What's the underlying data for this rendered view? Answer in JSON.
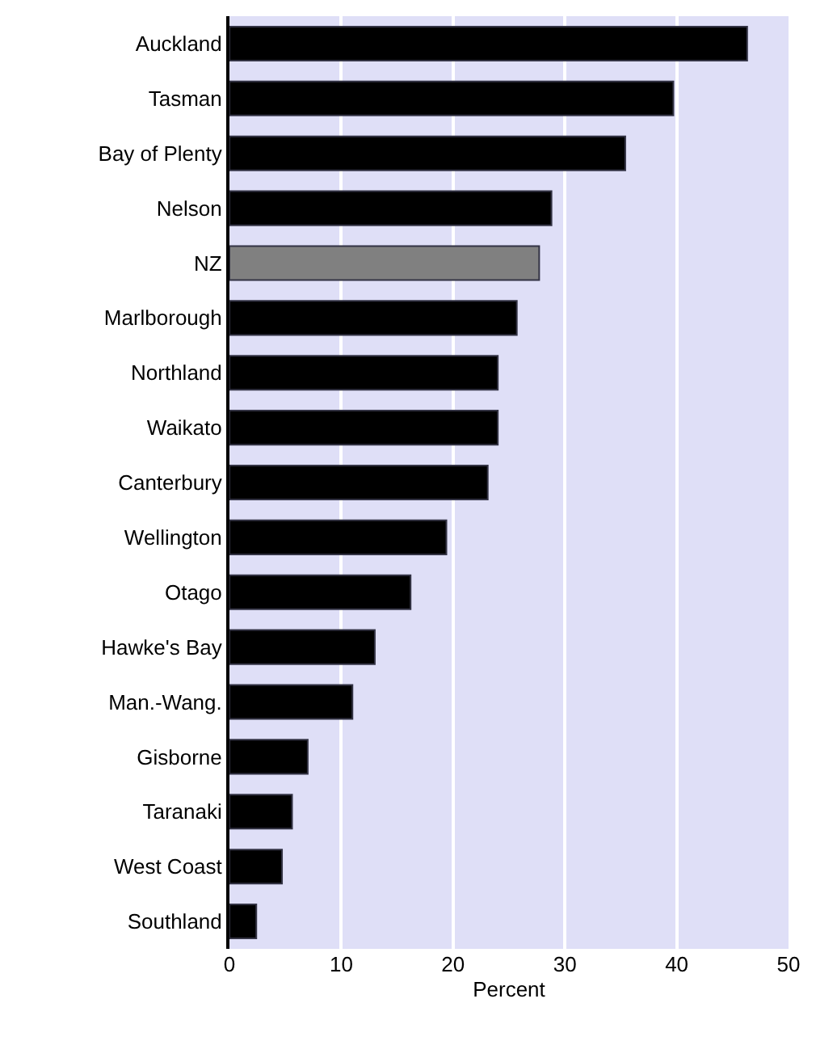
{
  "chart_data": {
    "type": "bar",
    "orientation": "horizontal",
    "xlabel": "Percent",
    "categories": [
      "Auckland",
      "Tasman",
      "Bay of Plenty",
      "Nelson",
      "NZ",
      "Marlborough",
      "Northland",
      "Waikato",
      "Canterbury",
      "Wellington",
      "Otago",
      "Hawke's Bay",
      "Man.-Wang.",
      "Gisborne",
      "Taranaki",
      "West Coast",
      "Southland"
    ],
    "values": [
      46.3,
      39.7,
      35.4,
      28.8,
      27.7,
      25.7,
      24.0,
      24.0,
      23.1,
      19.4,
      16.2,
      13.0,
      11.0,
      7.0,
      5.6,
      4.7,
      2.4
    ],
    "colors": [
      "#000000",
      "#000000",
      "#000000",
      "#000000",
      "#808080",
      "#000000",
      "#000000",
      "#000000",
      "#000000",
      "#000000",
      "#000000",
      "#000000",
      "#000000",
      "#000000",
      "#000000",
      "#000000",
      "#000000"
    ],
    "xlim": [
      0,
      50
    ],
    "xticks": [
      0,
      10,
      20,
      30,
      40,
      50
    ],
    "grid": "x",
    "legend": false
  }
}
